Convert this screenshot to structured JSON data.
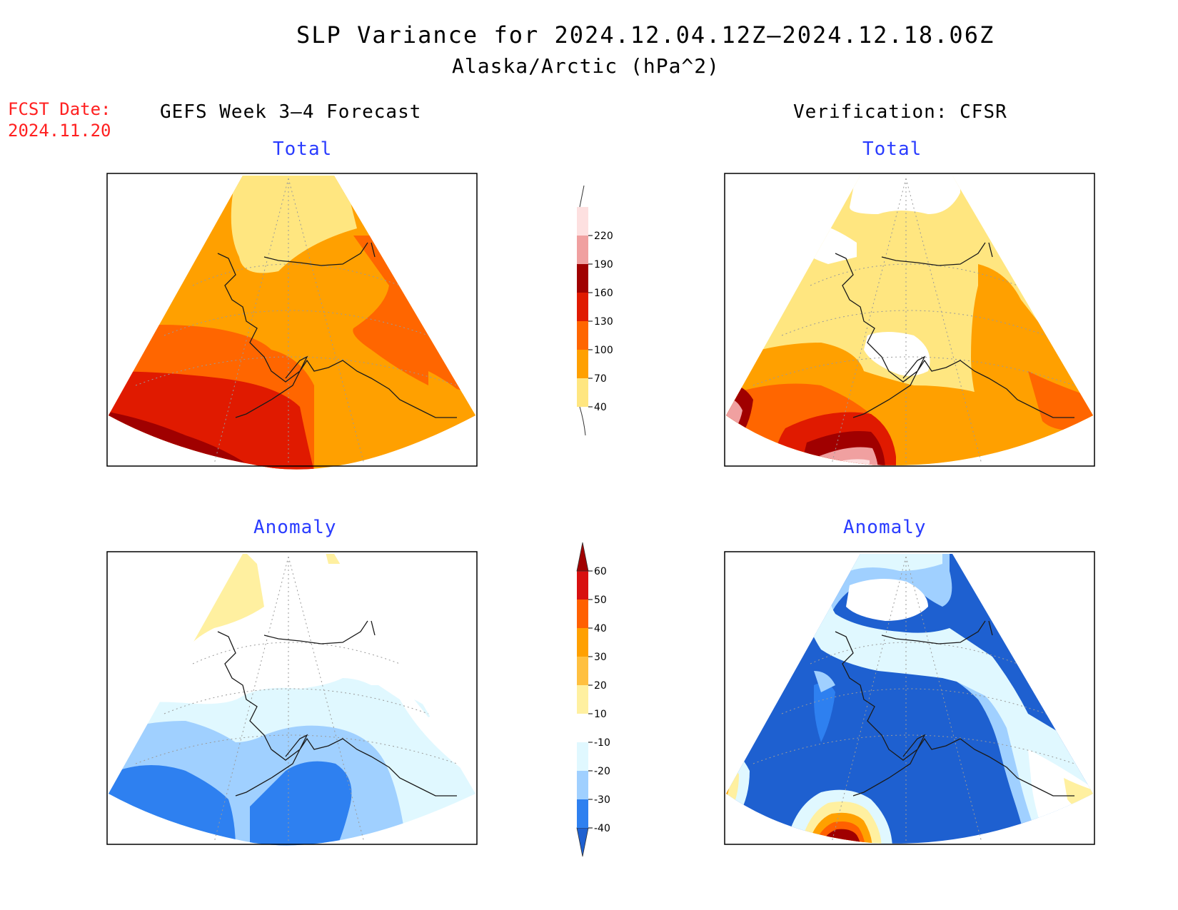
{
  "header": {
    "title": "SLP Variance for 2024.12.04.12Z–2024.12.18.06Z",
    "subtitle": "Alaska/Arctic (hPa^2)",
    "fcst_label": "FCST Date:",
    "fcst_date": "2024.11.20"
  },
  "columns": {
    "left_heading": "GEFS Week 3–4 Forecast",
    "right_heading": "Verification: CFSR"
  },
  "panels": {
    "forecast_total_label": "Total",
    "verification_total_label": "Total",
    "forecast_anomaly_label": "Anomaly",
    "verification_anomaly_label": "Anomaly"
  },
  "colorbars": {
    "total": {
      "ticks": [
        "40",
        "70",
        "100",
        "130",
        "160",
        "190",
        "220"
      ],
      "colors": [
        "#ffe680",
        "#ffa000",
        "#ff6600",
        "#e01a00",
        "#a00000",
        "#f0a0a0",
        "#fde0e0"
      ]
    },
    "anomaly": {
      "ticks": [
        "-40",
        "-30",
        "-20",
        "-10",
        "10",
        "20",
        "30",
        "40",
        "50",
        "60"
      ],
      "colors": [
        "#1e60d0",
        "#2e80f0",
        "#a0d0ff",
        "#e0f8ff",
        "#ffffff",
        "#fff0a0",
        "#ffc040",
        "#ffa000",
        "#ff6000",
        "#d81010",
        "#a00000"
      ]
    }
  }
}
